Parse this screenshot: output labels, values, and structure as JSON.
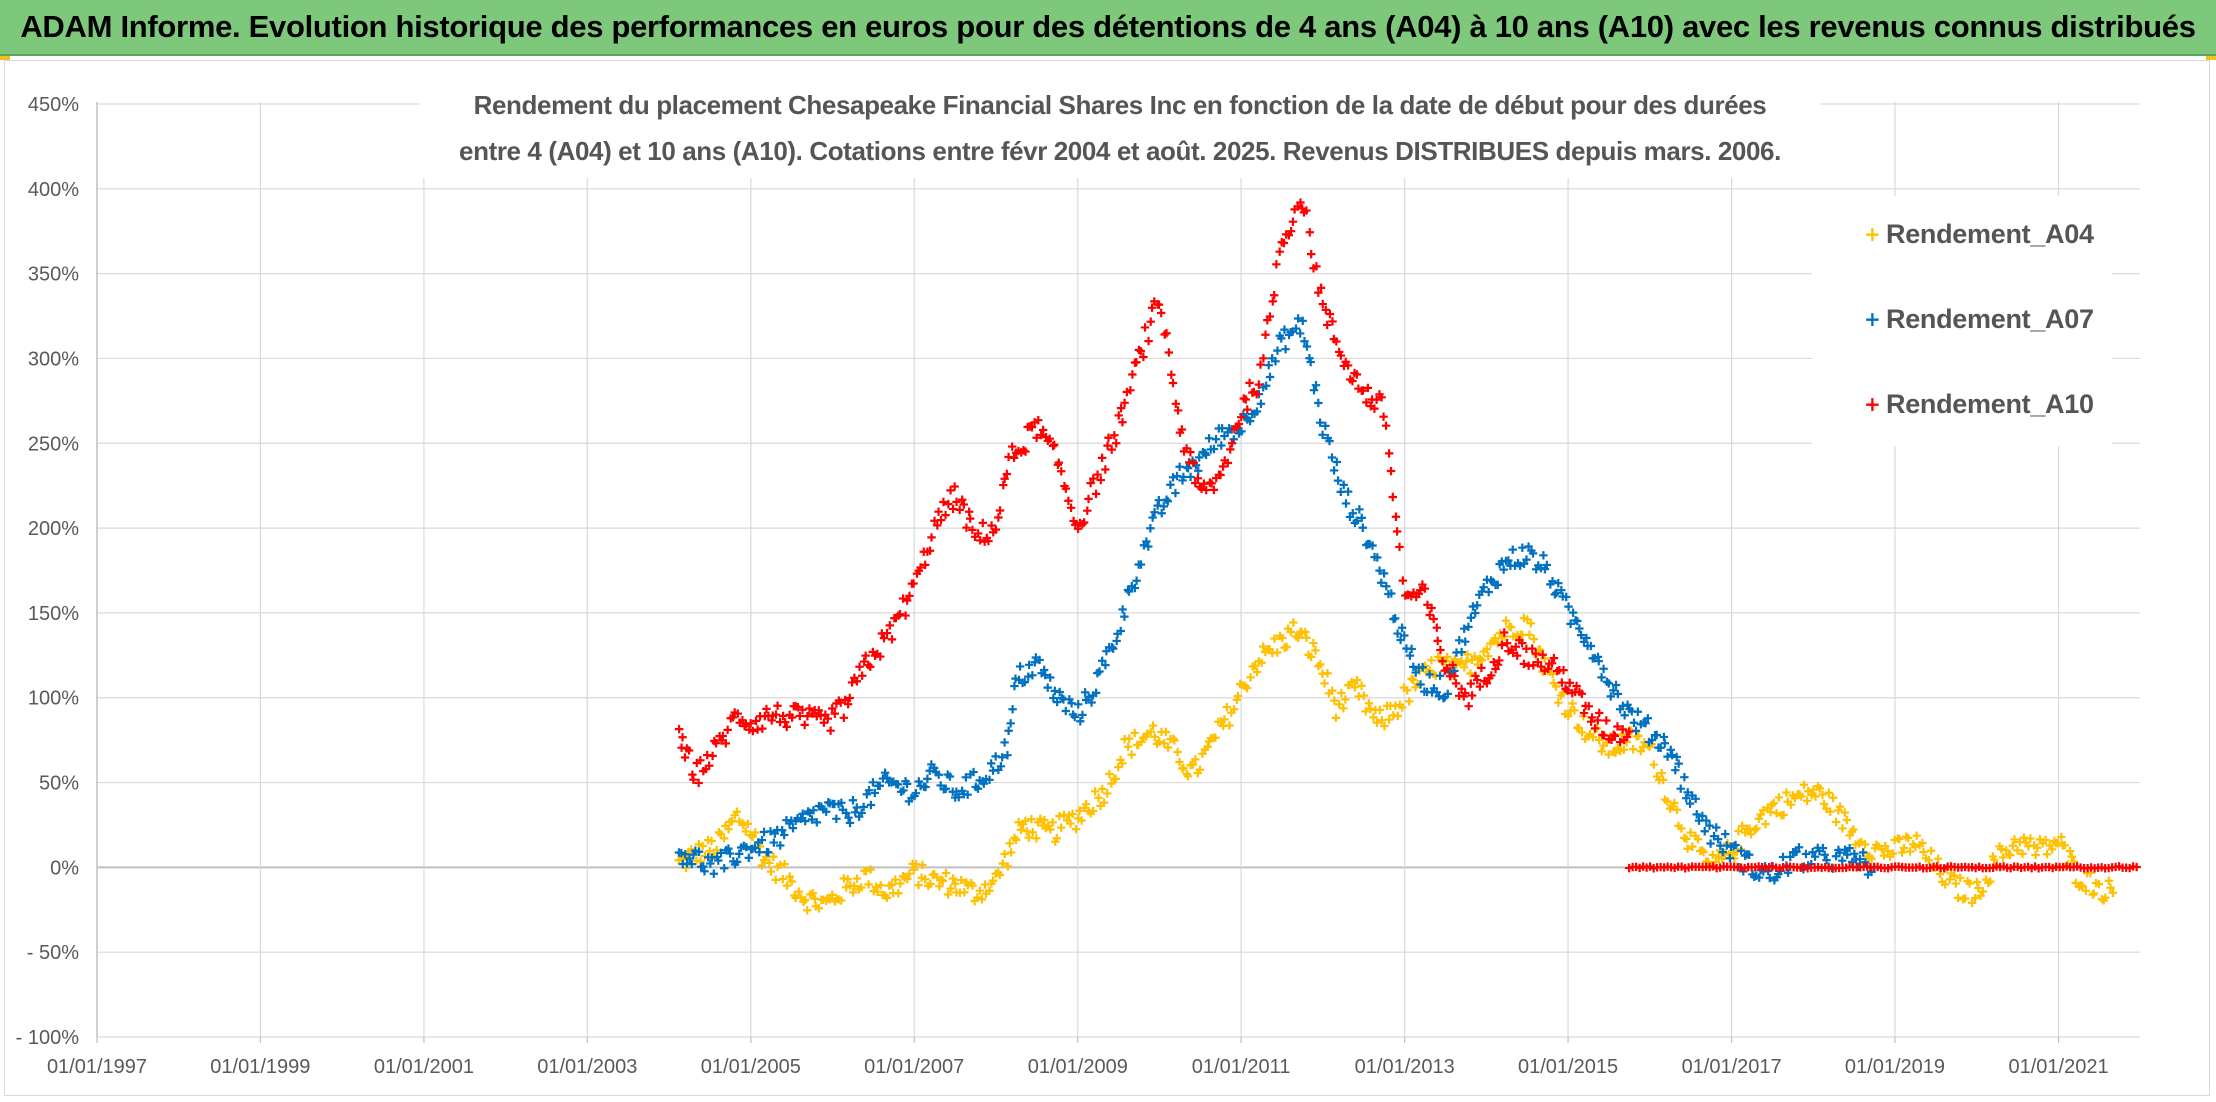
{
  "header": {
    "title": "ADAM Informe. Evolution historique des performances en euros pour des détentions de 4 ans (A04) à 10 ans (A10) avec les revenus connus distribués"
  },
  "colors": {
    "header_bg": "#7dc87a",
    "Rendement_A04": "#ffc000",
    "Rendement_A07": "#0070c0",
    "Rendement_A10": "#ff0000",
    "grid": "#d9d9d9",
    "zero_line": "#bfbfbf"
  },
  "chart_data": {
    "type": "scatter",
    "title_lines": [
      "Rendement du placement Chesapeake Financial Shares Inc en fonction de la date de début pour des durées",
      "entre 4 (A04) et 10 ans (A10). Cotations entre févr 2004 et août. 2025. Revenus DISTRIBUES depuis mars. 2006."
    ],
    "xlabel": "",
    "ylabel": "",
    "x_range": [
      "1997-01-01",
      "2021-12-31"
    ],
    "y_range": [
      -100,
      450
    ],
    "y_ticks": [
      {
        "value": 450,
        "label": "450%"
      },
      {
        "value": 400,
        "label": "400%"
      },
      {
        "value": 350,
        "label": "350%"
      },
      {
        "value": 300,
        "label": "300%"
      },
      {
        "value": 250,
        "label": "250%"
      },
      {
        "value": 200,
        "label": "200%"
      },
      {
        "value": 150,
        "label": "150%"
      },
      {
        "value": 100,
        "label": "100%"
      },
      {
        "value": 50,
        "label": "50%"
      },
      {
        "value": 0,
        "label": "0%"
      },
      {
        "value": -50,
        "label": "- 50%"
      },
      {
        "value": -100,
        "label": "- 100%"
      }
    ],
    "x_ticks": [
      {
        "value": "1997-01-01",
        "label": "01/01/1997"
      },
      {
        "value": "1999-01-01",
        "label": "01/01/1999"
      },
      {
        "value": "2001-01-01",
        "label": "01/01/2001"
      },
      {
        "value": "2003-01-01",
        "label": "01/01/2003"
      },
      {
        "value": "2005-01-01",
        "label": "01/01/2005"
      },
      {
        "value": "2007-01-01",
        "label": "01/01/2007"
      },
      {
        "value": "2009-01-01",
        "label": "01/01/2009"
      },
      {
        "value": "2011-01-01",
        "label": "01/01/2011"
      },
      {
        "value": "2013-01-01",
        "label": "01/01/2013"
      },
      {
        "value": "2015-01-01",
        "label": "01/01/2015"
      },
      {
        "value": "2017-01-01",
        "label": "01/01/2017"
      },
      {
        "value": "2019-01-01",
        "label": "01/01/2019"
      },
      {
        "value": "2021-01-01",
        "label": "01/01/2021"
      }
    ],
    "grid": true,
    "legend_position": "right",
    "series": [
      {
        "name": "Rendement_A04",
        "color": "#ffc000",
        "points": [
          [
            "2004-02-15",
            2
          ],
          [
            "2004-05-01",
            8
          ],
          [
            "2004-08-01",
            12
          ],
          [
            "2004-11-01",
            30
          ],
          [
            "2005-01-01",
            22
          ],
          [
            "2005-03-01",
            5
          ],
          [
            "2005-06-01",
            -5
          ],
          [
            "2005-09-01",
            -18
          ],
          [
            "2005-12-01",
            -22
          ],
          [
            "2006-03-01",
            -12
          ],
          [
            "2006-06-01",
            -5
          ],
          [
            "2006-09-01",
            -15
          ],
          [
            "2007-01-01",
            -3
          ],
          [
            "2007-04-01",
            -8
          ],
          [
            "2007-07-01",
            -10
          ],
          [
            "2007-10-01",
            -15
          ],
          [
            "2008-01-01",
            -8
          ],
          [
            "2008-03-01",
            10
          ],
          [
            "2008-05-01",
            25
          ],
          [
            "2008-09-01",
            20
          ],
          [
            "2009-01-01",
            30
          ],
          [
            "2009-05-01",
            45
          ],
          [
            "2009-08-01",
            70
          ],
          [
            "2009-12-01",
            80
          ],
          [
            "2010-03-01",
            70
          ],
          [
            "2010-06-01",
            55
          ],
          [
            "2010-09-01",
            75
          ],
          [
            "2010-12-01",
            95
          ],
          [
            "2011-03-01",
            120
          ],
          [
            "2011-06-01",
            130
          ],
          [
            "2011-09-01",
            140
          ],
          [
            "2011-12-01",
            125
          ],
          [
            "2012-03-01",
            95
          ],
          [
            "2012-06-01",
            105
          ],
          [
            "2012-09-01",
            85
          ],
          [
            "2012-12-01",
            95
          ],
          [
            "2013-03-01",
            110
          ],
          [
            "2013-06-01",
            120
          ],
          [
            "2013-09-01",
            115
          ],
          [
            "2014-01-01",
            130
          ],
          [
            "2014-04-01",
            140
          ],
          [
            "2014-07-01",
            145
          ],
          [
            "2014-10-01",
            115
          ],
          [
            "2015-01-01",
            95
          ],
          [
            "2015-04-01",
            80
          ],
          [
            "2015-07-01",
            70
          ],
          [
            "2015-10-01",
            75
          ],
          [
            "2016-01-01",
            70
          ],
          [
            "2016-04-01",
            40
          ],
          [
            "2016-07-01",
            15
          ],
          [
            "2016-10-01",
            0
          ],
          [
            "2017-01-01",
            10
          ],
          [
            "2017-04-01",
            25
          ],
          [
            "2017-07-01",
            35
          ],
          [
            "2017-10-01",
            40
          ],
          [
            "2018-01-01",
            45
          ],
          [
            "2018-03-01",
            40
          ],
          [
            "2018-07-01",
            20
          ],
          [
            "2018-10-01",
            10
          ],
          [
            "2019-01-01",
            10
          ],
          [
            "2019-04-01",
            15
          ],
          [
            "2019-07-01",
            0
          ],
          [
            "2019-10-01",
            -12
          ],
          [
            "2020-01-01",
            -15
          ],
          [
            "2020-04-01",
            5
          ],
          [
            "2020-07-01",
            15
          ],
          [
            "2020-10-01",
            10
          ],
          [
            "2021-01-01",
            15
          ],
          [
            "2021-04-01",
            -5
          ],
          [
            "2021-07-01",
            -12
          ],
          [
            "2021-09-01",
            -15
          ]
        ]
      },
      {
        "name": "Rendement_A07",
        "color": "#0070c0",
        "points": [
          [
            "2004-02-15",
            10
          ],
          [
            "2004-05-01",
            5
          ],
          [
            "2004-08-01",
            0
          ],
          [
            "2004-11-01",
            8
          ],
          [
            "2005-01-01",
            12
          ],
          [
            "2005-04-01",
            15
          ],
          [
            "2005-08-01",
            25
          ],
          [
            "2005-12-01",
            35
          ],
          [
            "2006-03-01",
            30
          ],
          [
            "2006-06-01",
            40
          ],
          [
            "2006-09-01",
            50
          ],
          [
            "2007-01-01",
            45
          ],
          [
            "2007-04-01",
            55
          ],
          [
            "2007-07-01",
            45
          ],
          [
            "2007-10-01",
            50
          ],
          [
            "2008-01-01",
            60
          ],
          [
            "2008-03-01",
            75
          ],
          [
            "2008-04-01",
            110
          ],
          [
            "2008-07-01",
            120
          ],
          [
            "2008-10-01",
            100
          ],
          [
            "2009-01-01",
            90
          ],
          [
            "2009-04-01",
            110
          ],
          [
            "2009-07-01",
            140
          ],
          [
            "2009-10-01",
            180
          ],
          [
            "2010-01-01",
            210
          ],
          [
            "2010-04-01",
            230
          ],
          [
            "2010-07-01",
            240
          ],
          [
            "2010-10-01",
            255
          ],
          [
            "2011-01-01",
            260
          ],
          [
            "2011-04-01",
            280
          ],
          [
            "2011-07-01",
            310
          ],
          [
            "2011-10-01",
            320
          ],
          [
            "2012-01-01",
            260
          ],
          [
            "2012-04-01",
            220
          ],
          [
            "2012-07-01",
            200
          ],
          [
            "2012-10-01",
            170
          ],
          [
            "2013-01-01",
            130
          ],
          [
            "2013-04-01",
            110
          ],
          [
            "2013-07-01",
            105
          ],
          [
            "2013-10-01",
            140
          ],
          [
            "2014-01-01",
            165
          ],
          [
            "2014-04-01",
            180
          ],
          [
            "2014-07-01",
            185
          ],
          [
            "2014-10-01",
            175
          ],
          [
            "2015-01-01",
            150
          ],
          [
            "2015-04-01",
            135
          ],
          [
            "2015-07-01",
            110
          ],
          [
            "2015-10-01",
            90
          ],
          [
            "2016-01-01",
            80
          ],
          [
            "2016-04-01",
            70
          ],
          [
            "2016-07-01",
            40
          ],
          [
            "2016-10-01",
            20
          ],
          [
            "2017-01-01",
            10
          ],
          [
            "2017-04-01",
            0
          ],
          [
            "2017-07-01",
            -5
          ],
          [
            "2017-10-01",
            5
          ],
          [
            "2018-01-01",
            5
          ],
          [
            "2018-04-01",
            5
          ],
          [
            "2018-07-01",
            5
          ],
          [
            "2018-10-01",
            0
          ]
        ]
      },
      {
        "name": "Rendement_A10",
        "color": "#ff0000",
        "points": [
          [
            "2004-02-15",
            75
          ],
          [
            "2004-05-01",
            55
          ],
          [
            "2004-08-01",
            70
          ],
          [
            "2004-11-01",
            90
          ],
          [
            "2005-01-01",
            85
          ],
          [
            "2005-04-01",
            90
          ],
          [
            "2005-08-01",
            88
          ],
          [
            "2005-12-01",
            85
          ],
          [
            "2006-03-01",
            95
          ],
          [
            "2006-06-01",
            120
          ],
          [
            "2006-09-01",
            135
          ],
          [
            "2007-01-01",
            165
          ],
          [
            "2007-04-01",
            200
          ],
          [
            "2007-07-01",
            220
          ],
          [
            "2007-10-01",
            195
          ],
          [
            "2008-01-01",
            200
          ],
          [
            "2008-03-01",
            240
          ],
          [
            "2008-07-01",
            260
          ],
          [
            "2008-10-01",
            240
          ],
          [
            "2009-01-01",
            200
          ],
          [
            "2009-04-01",
            230
          ],
          [
            "2009-07-01",
            260
          ],
          [
            "2009-10-01",
            300
          ],
          [
            "2010-01-01",
            335
          ],
          [
            "2010-04-01",
            260
          ],
          [
            "2010-07-01",
            220
          ],
          [
            "2010-10-01",
            230
          ],
          [
            "2011-01-01",
            270
          ],
          [
            "2011-04-01",
            290
          ],
          [
            "2011-07-01",
            370
          ],
          [
            "2011-10-01",
            395
          ],
          [
            "2012-01-01",
            330
          ],
          [
            "2012-04-01",
            300
          ],
          [
            "2012-07-01",
            280
          ],
          [
            "2012-10-01",
            270
          ],
          [
            "2013-01-01",
            160
          ],
          [
            "2013-04-01",
            160
          ],
          [
            "2013-07-01",
            120
          ],
          [
            "2013-10-01",
            100
          ],
          [
            "2014-01-01",
            115
          ],
          [
            "2014-04-01",
            135
          ],
          [
            "2014-07-01",
            125
          ],
          [
            "2014-10-01",
            120
          ],
          [
            "2015-01-01",
            110
          ],
          [
            "2015-04-01",
            90
          ],
          [
            "2015-07-01",
            80
          ],
          [
            "2015-10-01",
            80
          ]
        ],
        "flat_segment": {
          "x_start": "2015-10-01",
          "x_end": "2021-12-31",
          "y": 0
        }
      }
    ]
  }
}
